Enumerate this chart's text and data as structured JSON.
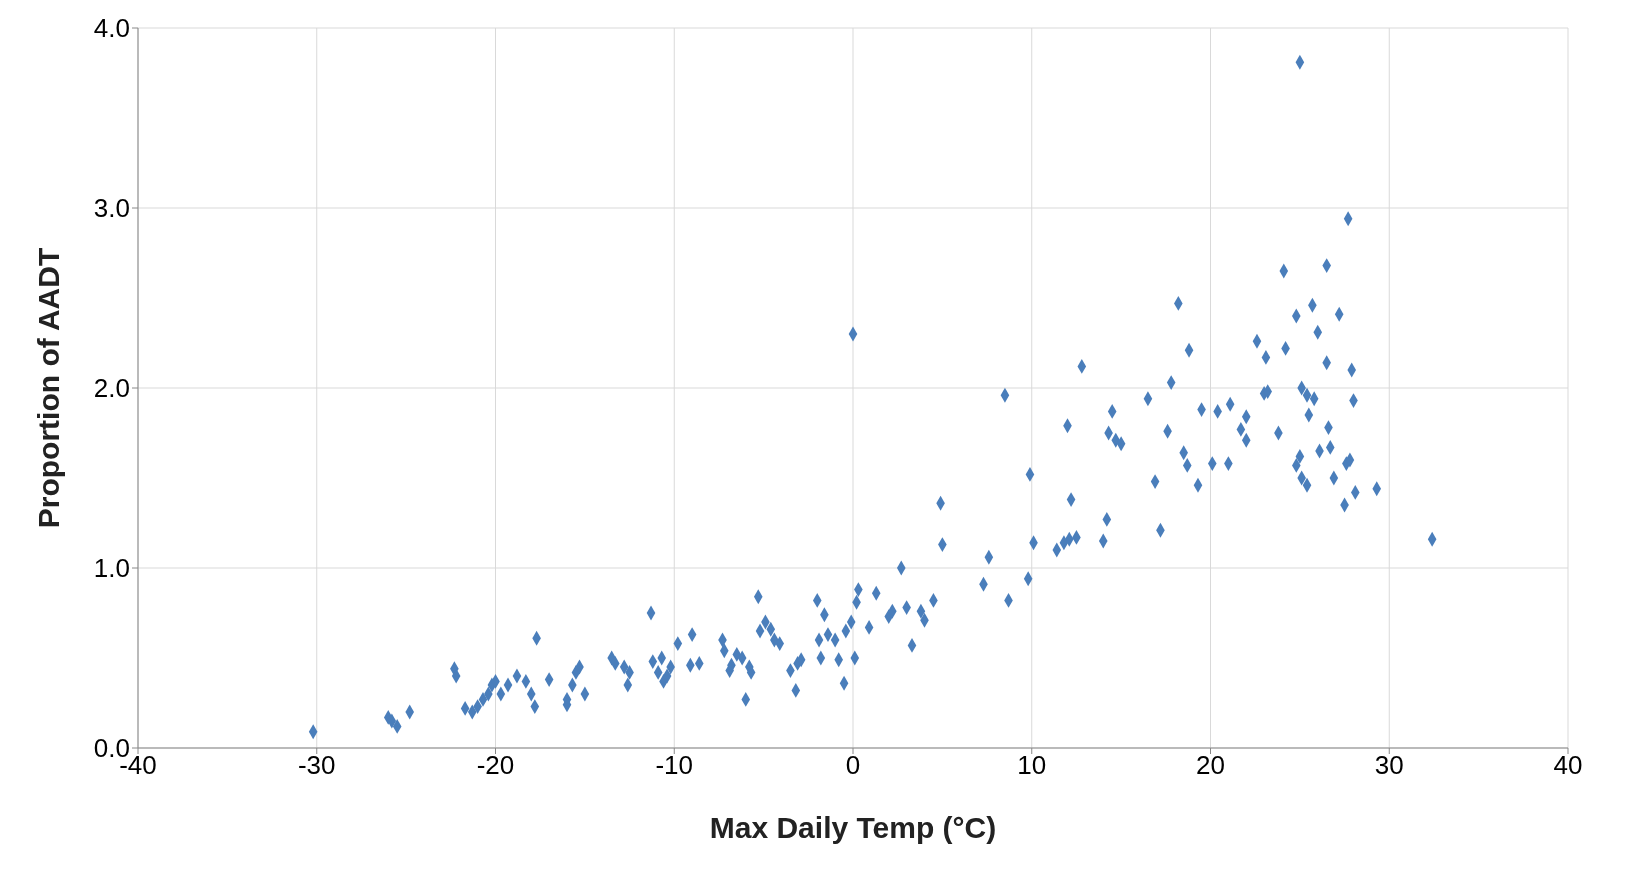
{
  "chart_data": {
    "type": "scatter",
    "xlabel": "Max Daily Temp (°C)",
    "ylabel": "Proportion of AADT",
    "xlim": [
      -40,
      40
    ],
    "xticks": [
      -40,
      -30,
      -20,
      -10,
      0,
      10,
      20,
      30,
      40
    ],
    "ylim": [
      0,
      4
    ],
    "yticks": [
      {
        "value": 0,
        "label": "0.0"
      },
      {
        "value": 1,
        "label": "1.0"
      },
      {
        "value": 2,
        "label": "2.0"
      },
      {
        "value": 3,
        "label": "3.0"
      },
      {
        "value": 4,
        "label": "4.0"
      }
    ],
    "grid": true,
    "marker": "diamond",
    "series": [
      {
        "color": "#4a7ebb",
        "x": [
          -30.2,
          -26,
          -25.8,
          -25.5,
          -24.8,
          -22.3,
          -22.2,
          -21.7,
          -21.3,
          -21,
          -20.7,
          -20.4,
          -20.2,
          -20,
          -19.7,
          -19.3,
          -18.8,
          -18.3,
          -18,
          -17.8,
          -17.7,
          -17,
          -16,
          -16,
          -15.7,
          -15.5,
          -15.3,
          -15,
          -13.5,
          -13.3,
          -12.8,
          -12.6,
          -12.5,
          -11.3,
          -11.2,
          -10.9,
          -10.7,
          -10.6,
          -10.4,
          -10.2,
          -9.8,
          -9,
          -9.1,
          -8.6,
          -7.3,
          -7.2,
          -6.9,
          -6.8,
          -6.5,
          -6.2,
          -6,
          -5.8,
          -5.7,
          -5.3,
          -5.2,
          -4.9,
          -4.6,
          -4.4,
          -4.1,
          -3.5,
          -3.2,
          -3.1,
          -2.9,
          -2,
          -1.9,
          -1.8,
          -1.6,
          -1.4,
          -1,
          -0.8,
          -0.5,
          -0.4,
          -0.1,
          0,
          0.1,
          0.2,
          0.3,
          0.9,
          1.3,
          2,
          2.2,
          2.7,
          3,
          3.3,
          3.8,
          4,
          4.5,
          4.9,
          5,
          7.3,
          7.6,
          8.5,
          8.7,
          9.8,
          9.9,
          10.1,
          11.4,
          11.8,
          12,
          12.2,
          12.1,
          12.5,
          12.8,
          14,
          14.2,
          14.3,
          14.5,
          14.7,
          15,
          16.5,
          16.9,
          17.2,
          17.6,
          17.8,
          18.2,
          18.5,
          18.8,
          18.7,
          19.3,
          19.5,
          20.1,
          20.4,
          21,
          21.1,
          21.7,
          22,
          22,
          22.6,
          23,
          23.1,
          23.2,
          23.8,
          24.1,
          24.2,
          24.8,
          24.8,
          25,
          25,
          25.1,
          25.1,
          25.4,
          25.4,
          25.5,
          25.7,
          25.8,
          26,
          26.1,
          26.5,
          26.5,
          26.6,
          26.7,
          26.9,
          27.2,
          27.5,
          27.6,
          27.7,
          27.8,
          27.9,
          28,
          28.1,
          29.3,
          32.4
        ],
        "values": [
          0.09,
          0.17,
          0.15,
          0.12,
          0.2,
          0.44,
          0.4,
          0.22,
          0.2,
          0.23,
          0.27,
          0.3,
          0.35,
          0.37,
          0.3,
          0.35,
          0.4,
          0.37,
          0.3,
          0.23,
          0.61,
          0.38,
          0.27,
          0.24,
          0.35,
          0.42,
          0.45,
          0.3,
          0.5,
          0.47,
          0.45,
          0.35,
          0.42,
          0.75,
          0.48,
          0.42,
          0.5,
          0.37,
          0.4,
          0.45,
          0.58,
          0.63,
          0.46,
          0.47,
          0.6,
          0.54,
          0.43,
          0.46,
          0.52,
          0.5,
          0.27,
          0.45,
          0.42,
          0.84,
          0.65,
          0.7,
          0.66,
          0.6,
          0.58,
          0.43,
          0.32,
          0.47,
          0.49,
          0.82,
          0.6,
          0.5,
          0.74,
          0.63,
          0.6,
          0.49,
          0.36,
          0.65,
          0.7,
          2.3,
          0.5,
          0.81,
          0.88,
          0.67,
          0.86,
          0.73,
          0.76,
          1.0,
          0.78,
          0.57,
          0.76,
          0.71,
          0.82,
          1.36,
          1.13,
          0.91,
          1.06,
          1.96,
          0.82,
          0.94,
          1.52,
          1.14,
          1.1,
          1.14,
          1.79,
          1.38,
          1.16,
          1.17,
          2.12,
          1.15,
          1.27,
          1.75,
          1.87,
          1.71,
          1.69,
          1.94,
          1.48,
          1.21,
          1.76,
          2.03,
          2.47,
          1.64,
          2.21,
          1.57,
          1.46,
          1.88,
          1.58,
          1.87,
          1.58,
          1.91,
          1.77,
          1.84,
          1.71,
          2.26,
          1.97,
          2.17,
          1.98,
          1.75,
          2.65,
          2.22,
          2.4,
          1.57,
          3.81,
          1.62,
          2.0,
          1.5,
          1.46,
          1.96,
          1.85,
          2.46,
          1.94,
          2.31,
          1.65,
          2.68,
          2.14,
          1.78,
          1.67,
          1.5,
          2.41,
          1.35,
          1.58,
          2.94,
          1.6,
          2.1,
          1.93,
          1.42,
          1.44,
          1.16
        ]
      }
    ]
  }
}
